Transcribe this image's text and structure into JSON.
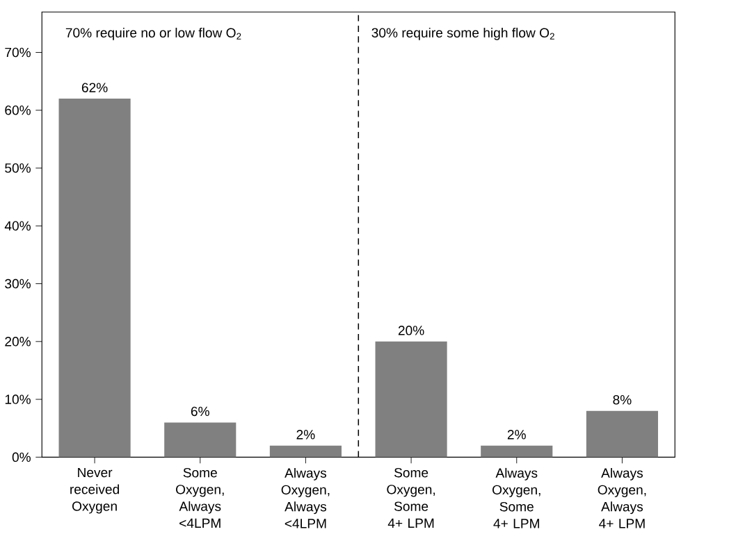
{
  "chart_data": {
    "type": "bar",
    "categories": [
      "Never received Oxygen",
      "Some Oxygen, Always <4LPM",
      "Always Oxygen, Always <4LPM",
      "Some Oxygen, Some 4+ LPM",
      "Always Oxygen, Some 4+ LPM",
      "Always Oxygen, Always 4+ LPM"
    ],
    "values": [
      62,
      6,
      2,
      20,
      2,
      8
    ],
    "value_labels": [
      "62%",
      "6%",
      "2%",
      "20%",
      "2%",
      "8%"
    ],
    "color": "#808080",
    "ylim": [
      0,
      77
    ],
    "yticks": [
      {
        "value": 0,
        "label": "0%"
      },
      {
        "value": 10,
        "label": "10%"
      },
      {
        "value": 20,
        "label": "20%"
      },
      {
        "value": 30,
        "label": "30%"
      },
      {
        "value": 40,
        "label": "40%"
      },
      {
        "value": 50,
        "label": "50%"
      },
      {
        "value": 60,
        "label": "60%"
      },
      {
        "value": 70,
        "label": "70%"
      }
    ],
    "annotations": [
      "70% require no or low flow O$_{2}$",
      "30% require some high flow O$_{2}$"
    ],
    "grid": false
  }
}
